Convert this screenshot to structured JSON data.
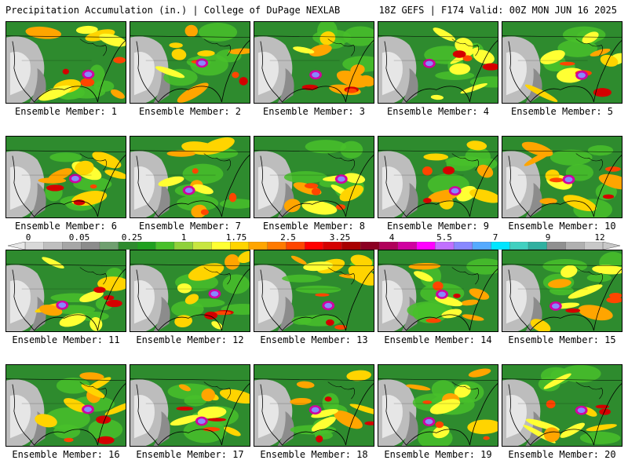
{
  "header": {
    "left_title": "Precipitation Accumulation (in.) | College of DuPage NEXLAB",
    "right_title": "18Z GEFS | F174 Valid: 00Z MON JUN 16 2025"
  },
  "colorbar": {
    "tick_labels": [
      "0",
      "0.05",
      "0.25",
      "1",
      "1.75",
      "2.5",
      "3.25",
      "4",
      "5.5",
      "7",
      "9",
      "12"
    ],
    "colors": [
      "#d9d9d9",
      "#bfbfbf",
      "#a6a6a6",
      "#8c8c8c",
      "#6f9f6f",
      "#2e8b2e",
      "#1fa01f",
      "#48c02a",
      "#8fd13a",
      "#c8e640",
      "#ffff33",
      "#ffd400",
      "#ffa500",
      "#ff7a00",
      "#ff4500",
      "#ff0000",
      "#d40000",
      "#a80000",
      "#8b0022",
      "#b0005a",
      "#d000a0",
      "#ff00ff",
      "#c070ff",
      "#8888ff",
      "#55aaff",
      "#00e5ff",
      "#40d0c0",
      "#30b0a0",
      "#909090",
      "#b0b0b0",
      "#c8c8c8"
    ]
  },
  "members": [
    {
      "label": "Ensemble Member: 1"
    },
    {
      "label": "Ensemble Member: 2"
    },
    {
      "label": "Ensemble Member: 3"
    },
    {
      "label": "Ensemble Member: 4"
    },
    {
      "label": "Ensemble Member: 5"
    },
    {
      "label": "Ensemble Member: 6"
    },
    {
      "label": "Ensemble Member: 7"
    },
    {
      "label": "Ensemble Member: 8"
    },
    {
      "label": "Ensemble Member: 9"
    },
    {
      "label": "Ensemble Member: 10"
    },
    {
      "label": "Ensemble Member: 11"
    },
    {
      "label": "Ensemble Member: 12"
    },
    {
      "label": "Ensemble Member: 13"
    },
    {
      "label": "Ensemble Member: 14"
    },
    {
      "label": "Ensemble Member: 15"
    },
    {
      "label": "Ensemble Member: 16"
    },
    {
      "label": "Ensemble Member: 17"
    },
    {
      "label": "Ensemble Member: 18"
    },
    {
      "label": "Ensemble Member: 19"
    },
    {
      "label": "Ensemble Member: 20"
    }
  ]
}
